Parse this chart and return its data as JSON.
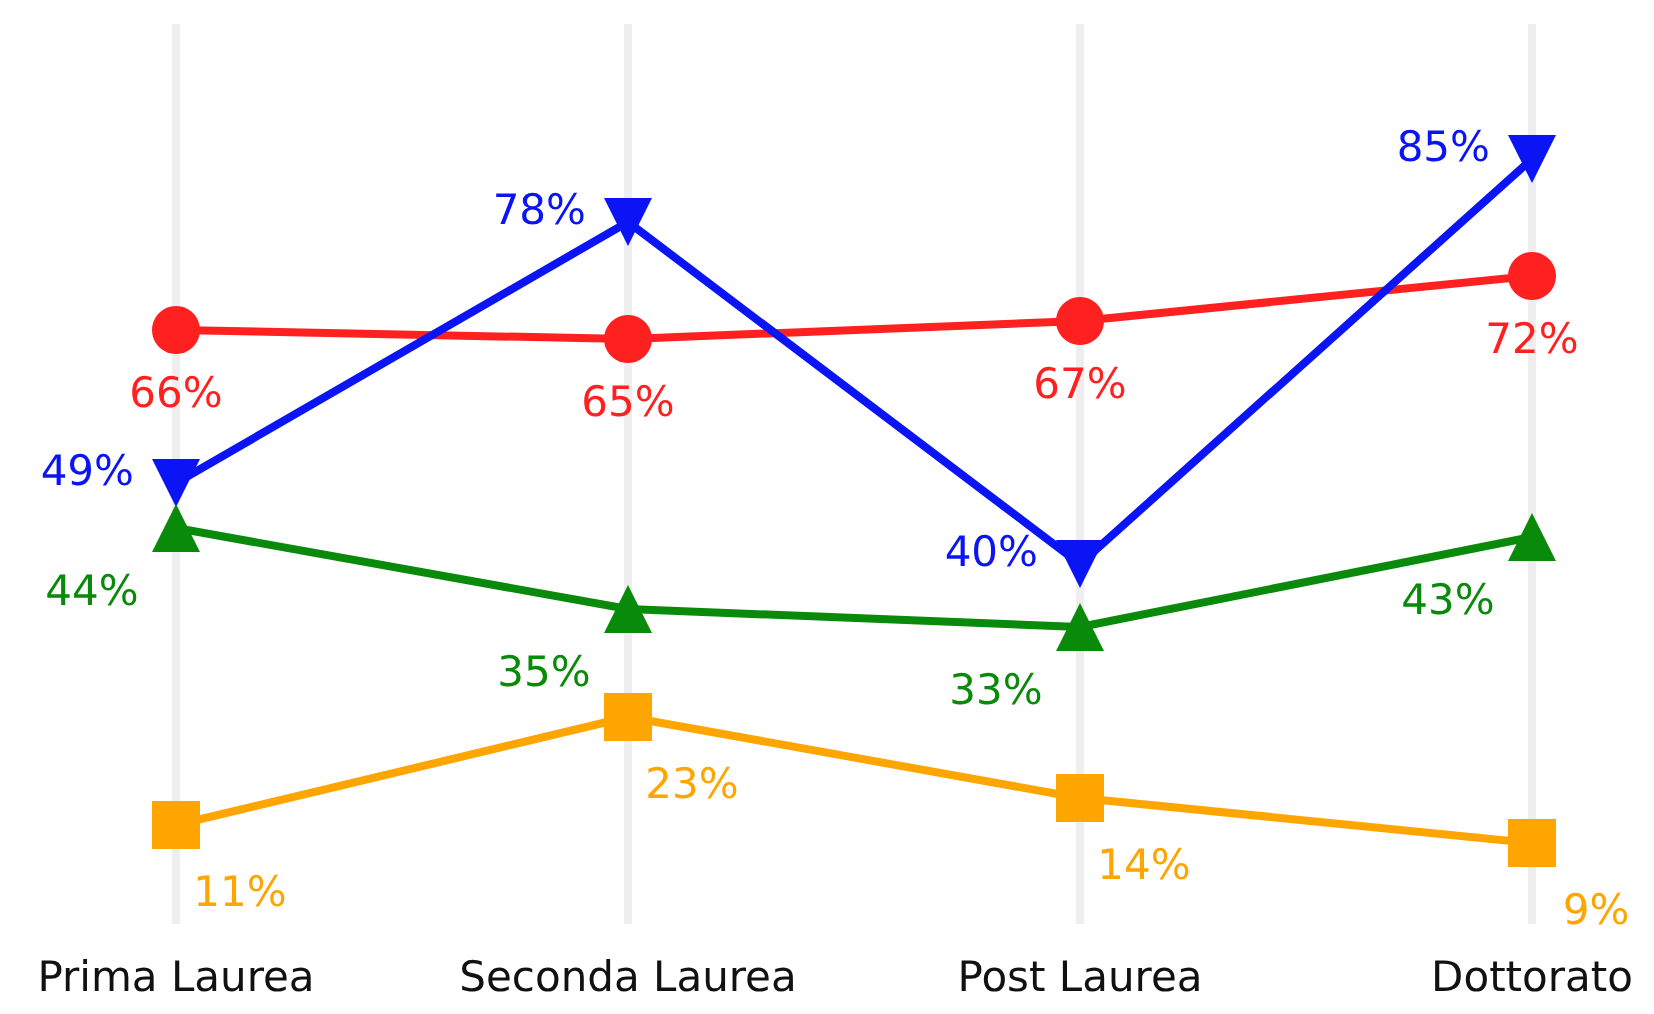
{
  "chart_data": {
    "type": "line",
    "categories": [
      "Prima Laurea",
      "Seconda Laurea",
      "Post Laurea",
      "Dottorato"
    ],
    "series": [
      {
        "color": "#ff2020",
        "marker": "circle",
        "values": [
          66,
          65,
          67,
          72
        ],
        "value_labels": [
          "66%",
          "65%",
          "67%",
          "72%"
        ]
      },
      {
        "color": "#0a14f5",
        "marker": "triangle-down",
        "values": [
          49,
          78,
          40,
          85
        ],
        "value_labels": [
          "49%",
          "78%",
          "40%",
          "85%"
        ]
      },
      {
        "color": "#0a8a0a",
        "marker": "triangle",
        "values": [
          44,
          35,
          33,
          43
        ],
        "value_labels": [
          "44%",
          "35%",
          "33%",
          "43%"
        ]
      },
      {
        "color": "#ffa500",
        "marker": "square",
        "values": [
          11,
          23,
          14,
          9
        ],
        "value_labels": [
          "11%",
          "23%",
          "14%",
          "9%"
        ]
      }
    ],
    "grid": "x"
  }
}
